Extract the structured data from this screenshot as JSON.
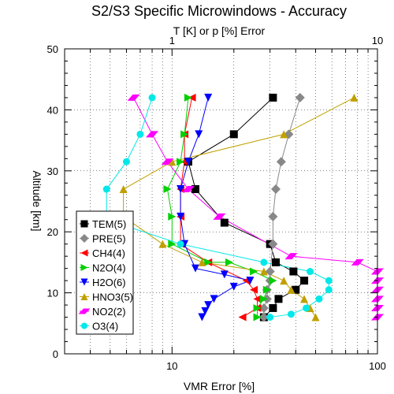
{
  "chart_data": {
    "type": "line",
    "title": "S2/S3 Specific Microwindows - Accuracy",
    "top_axis_label": "T [K] or p [%] Error",
    "xlabel": "VMR Error [%]",
    "ylabel": "Altitude [km]",
    "x_scale": "log",
    "xlim": [
      3,
      100
    ],
    "ylim": [
      0,
      50
    ],
    "x_tick_labels": [
      "10",
      "100"
    ],
    "top_tick_labels": [
      "1",
      "10"
    ],
    "y_tick_labels": [
      "0",
      "10",
      "20",
      "30",
      "40",
      "50"
    ],
    "grid": true,
    "legend_position": "bottom-left",
    "series": [
      {
        "name": "TEM(5)",
        "color": "#000000",
        "marker": "square",
        "points": [
          [
            31,
            42
          ],
          [
            20,
            36
          ],
          [
            12,
            31.5
          ],
          [
            13,
            27
          ],
          [
            18,
            21.5
          ],
          [
            30,
            18
          ],
          [
            32,
            15
          ],
          [
            39,
            13.5
          ],
          [
            44,
            12
          ],
          [
            40,
            10.5
          ],
          [
            33,
            9
          ],
          [
            31,
            7.5
          ],
          [
            28,
            6
          ]
        ]
      },
      {
        "name": "PRE(5)",
        "color": "#888888",
        "marker": "diamond",
        "points": [
          [
            42,
            42
          ],
          [
            37,
            36
          ],
          [
            34,
            31.5
          ],
          [
            32,
            27
          ],
          [
            31,
            22.5
          ],
          [
            31,
            18
          ],
          [
            30,
            13.5
          ],
          [
            30,
            12
          ],
          [
            29,
            10.5
          ],
          [
            29,
            9
          ],
          [
            28,
            7.5
          ],
          [
            28,
            6
          ]
        ]
      },
      {
        "name": "CH4(4)",
        "color": "#ff0000",
        "marker": "triangle-left",
        "points": [
          [
            12.5,
            42
          ],
          [
            11.5,
            36
          ],
          [
            11.5,
            31.5
          ],
          [
            11,
            27
          ],
          [
            11,
            22.5
          ],
          [
            11,
            18
          ],
          [
            15,
            15
          ],
          [
            23,
            12
          ],
          [
            25,
            10.5
          ],
          [
            26,
            9
          ],
          [
            26,
            7.5
          ],
          [
            22,
            6
          ]
        ]
      },
      {
        "name": "N2O(4)",
        "color": "#00d000",
        "marker": "triangle-right",
        "points": [
          [
            12,
            42
          ],
          [
            11.5,
            36
          ],
          [
            11,
            31.5
          ],
          [
            9.5,
            27
          ],
          [
            10,
            22.5
          ],
          [
            10,
            18
          ],
          [
            15,
            15
          ],
          [
            19,
            15
          ],
          [
            25,
            13.5
          ],
          [
            31,
            12
          ],
          [
            29,
            10.5
          ],
          [
            28,
            9
          ],
          [
            26,
            7.5
          ],
          [
            26,
            6
          ]
        ]
      },
      {
        "name": "H2O(6)",
        "color": "#0000ff",
        "marker": "triangle-down",
        "points": [
          [
            15,
            42
          ],
          [
            13.5,
            36
          ],
          [
            12,
            31.5
          ],
          [
            11,
            27
          ],
          [
            11,
            22.5
          ],
          [
            11.5,
            18
          ],
          [
            13,
            14
          ],
          [
            18,
            13
          ],
          [
            24,
            12
          ],
          [
            20,
            11
          ],
          [
            16,
            9
          ],
          [
            15,
            8
          ],
          [
            14.5,
            7
          ],
          [
            14,
            6
          ]
        ]
      },
      {
        "name": "HNO3(5)",
        "color": "#c0a000",
        "marker": "triangle-up",
        "points": [
          [
            77,
            42
          ],
          [
            35,
            36
          ],
          [
            10,
            31.5
          ],
          [
            5.8,
            27
          ],
          [
            5.8,
            22.5
          ],
          [
            9,
            18
          ],
          [
            14,
            15
          ],
          [
            28,
            13.5
          ],
          [
            35,
            12
          ],
          [
            38,
            10.5
          ],
          [
            44,
            9
          ],
          [
            47,
            7.5
          ],
          [
            50,
            6
          ]
        ]
      },
      {
        "name": "NO2(2)",
        "color": "#ff00ff",
        "marker": "parallelogram",
        "points": [
          [
            6.5,
            42
          ],
          [
            8,
            36
          ],
          [
            9.5,
            31.5
          ],
          [
            12,
            27
          ],
          [
            17,
            22.5
          ],
          [
            38,
            16
          ],
          [
            80,
            15
          ],
          [
            100,
            13.5
          ],
          [
            100,
            12
          ],
          [
            100,
            10.5
          ],
          [
            100,
            9
          ],
          [
            100,
            7.5
          ],
          [
            100,
            6
          ]
        ]
      },
      {
        "name": "O3(4)",
        "color": "#00e8e8",
        "marker": "circle",
        "points": [
          [
            8,
            42
          ],
          [
            7,
            36
          ],
          [
            6,
            31.5
          ],
          [
            4.8,
            27
          ],
          [
            4.8,
            22
          ],
          [
            11,
            18
          ],
          [
            28,
            15
          ],
          [
            47,
            13.5
          ],
          [
            58,
            12
          ],
          [
            58,
            10.5
          ],
          [
            52,
            9
          ],
          [
            45,
            7.5
          ],
          [
            38,
            6.5
          ],
          [
            30,
            6
          ]
        ]
      }
    ]
  }
}
